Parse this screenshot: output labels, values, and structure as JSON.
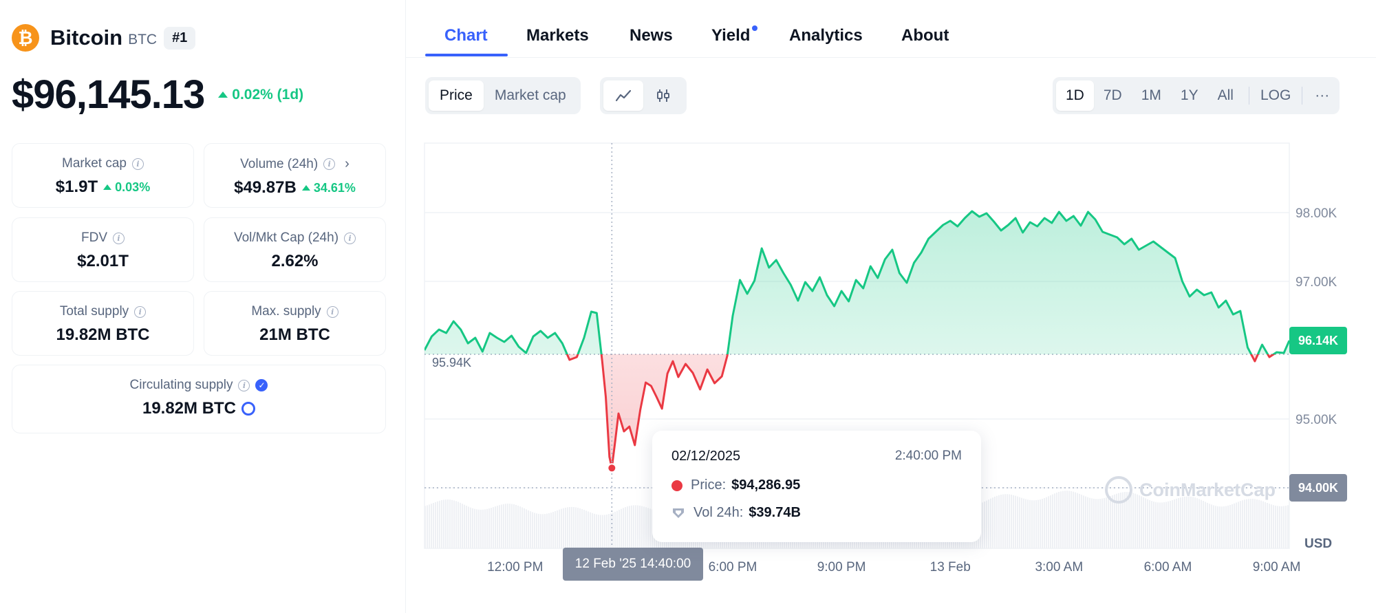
{
  "coin": {
    "logo_glyph": "₿",
    "name": "Bitcoin",
    "symbol": "BTC",
    "rank": "#1",
    "price": "$96,145.13",
    "change": "0.02% (1d)",
    "brand_color": "#f7931a"
  },
  "stats": {
    "market_cap": {
      "label": "Market cap",
      "value": "$1.9T",
      "change": "0.03%"
    },
    "volume": {
      "label": "Volume (24h)",
      "value": "$49.87B",
      "change": "34.61%"
    },
    "fdv": {
      "label": "FDV",
      "value": "$2.01T"
    },
    "vol_mkt_cap": {
      "label": "Vol/Mkt Cap (24h)",
      "value": "2.62%"
    },
    "total_supply": {
      "label": "Total supply",
      "value": "19.82M BTC"
    },
    "max_supply": {
      "label": "Max. supply",
      "value": "21M BTC"
    },
    "circulating_supply": {
      "label": "Circulating supply",
      "value": "19.82M BTC"
    }
  },
  "tabs": [
    "Chart",
    "Markets",
    "News",
    "Yield",
    "Analytics",
    "About"
  ],
  "active_tab": "Chart",
  "toolbar": {
    "metric_options": [
      "Price",
      "Market cap"
    ],
    "metric_selected": "Price",
    "chart_types": [
      "line-chart-icon",
      "candlestick-icon"
    ],
    "chart_type_selected": "line-chart-icon",
    "ranges": [
      "1D",
      "7D",
      "1M",
      "1Y",
      "All"
    ],
    "range_selected": "1D",
    "log_label": "LOG",
    "more_label": "···"
  },
  "chart_data": {
    "type": "area",
    "currency_label": "USD",
    "baseline_value": 95940,
    "baseline_label": "95.94K",
    "y_ticks": [
      {
        "value": 98000,
        "label": "98.00K"
      },
      {
        "value": 97000,
        "label": "97.00K"
      },
      {
        "value": 95000,
        "label": "95.00K"
      },
      {
        "value": 94000,
        "label": "94.00K"
      }
    ],
    "x_ticks": [
      "12:00 PM",
      "6:00 PM",
      "9:00 PM",
      "13 Feb",
      "3:00 AM",
      "6:00 AM",
      "9:00 AM"
    ],
    "current_price_label": "96.14K",
    "colors": {
      "up": "#16c784",
      "down": "#ea3943",
      "badge_current": "#16c784",
      "badge_hover": "#808a9d"
    },
    "x_hours_start": 9.5,
    "x_hours_end": 33.35,
    "series": [
      {
        "x": [
          9.5,
          9.7,
          9.9,
          10.1,
          10.3,
          10.5,
          10.7,
          10.9,
          11.1,
          11.3,
          11.5,
          11.7,
          11.9,
          12.1,
          12.3,
          12.5,
          12.7,
          12.9,
          13.1,
          13.3,
          13.5,
          13.7,
          13.9,
          14.1,
          14.25,
          14.4,
          14.5,
          14.6,
          14.667,
          14.75,
          14.85,
          15.0,
          15.15,
          15.3,
          15.45,
          15.6,
          15.75,
          15.9,
          16.05,
          16.2,
          16.35,
          16.5,
          16.7,
          16.9,
          17.1,
          17.3,
          17.5,
          17.7,
          17.85,
          18.0,
          18.2,
          18.4,
          18.6,
          18.8,
          19.0,
          19.2,
          19.4,
          19.6,
          19.8,
          20.0,
          20.2,
          20.4,
          20.6,
          20.8,
          21.0,
          21.2,
          21.4,
          21.6,
          21.8,
          22.0,
          22.2,
          22.4,
          22.6,
          22.8,
          23.0,
          23.2,
          23.4,
          23.6,
          23.8,
          24.0,
          24.2,
          24.4,
          24.6,
          24.8,
          25.0,
          25.2,
          25.4,
          25.6,
          25.8,
          26.0,
          26.2,
          26.4,
          26.6,
          26.8,
          27.0,
          27.2,
          27.4,
          27.6,
          27.8,
          28.0,
          28.2,
          28.4,
          28.6,
          28.8,
          29.0,
          29.2,
          29.4,
          29.6,
          29.8,
          30.0,
          30.2,
          30.4,
          30.6,
          30.8,
          31.0,
          31.2,
          31.4,
          31.6,
          31.8,
          32.0,
          32.2,
          32.4,
          32.6,
          32.8,
          33.0,
          33.2,
          33.35
        ],
        "y": [
          96000,
          96200,
          96300,
          96250,
          96420,
          96300,
          96100,
          96180,
          95980,
          96250,
          96180,
          96120,
          96210,
          96050,
          95960,
          96200,
          96280,
          96180,
          96250,
          96100,
          95860,
          95900,
          96180,
          96560,
          96540,
          95840,
          95320,
          94450,
          94290,
          94640,
          95080,
          94820,
          94890,
          94620,
          95130,
          95530,
          95480,
          95320,
          95150,
          95660,
          95840,
          95610,
          95800,
          95670,
          95430,
          95720,
          95520,
          95620,
          95920,
          96500,
          97020,
          96820,
          97010,
          97480,
          97200,
          97310,
          97120,
          96950,
          96720,
          96990,
          96860,
          97060,
          96800,
          96640,
          96860,
          96710,
          97020,
          96900,
          97220,
          97050,
          97320,
          97460,
          97120,
          96980,
          97270,
          97420,
          97620,
          97720,
          97820,
          97880,
          97800,
          97920,
          98020,
          97940,
          97990,
          97870,
          97740,
          97820,
          97920,
          97710,
          97860,
          97800,
          97920,
          97850,
          98010,
          97880,
          97950,
          97810,
          98010,
          97900,
          97720,
          97680,
          97640,
          97540,
          97620,
          97460,
          97520,
          97580,
          97500,
          97420,
          97340,
          97000,
          96780,
          96880,
          96800,
          96840,
          96620,
          96720,
          96520,
          96570,
          96040,
          95840,
          96080,
          95900,
          95970,
          95960,
          96140
        ]
      }
    ]
  },
  "tooltip": {
    "date": "02/12/2025",
    "time": "2:40:00 PM",
    "price_label": "Price:",
    "price_value": "$94,286.95",
    "vol_label": "Vol 24h:",
    "vol_value": "$39.74B"
  },
  "hover_x_label": "12 Feb '25 14:40:00",
  "hover_hour": 14.667,
  "watermark_text": "CoinMarketCap"
}
